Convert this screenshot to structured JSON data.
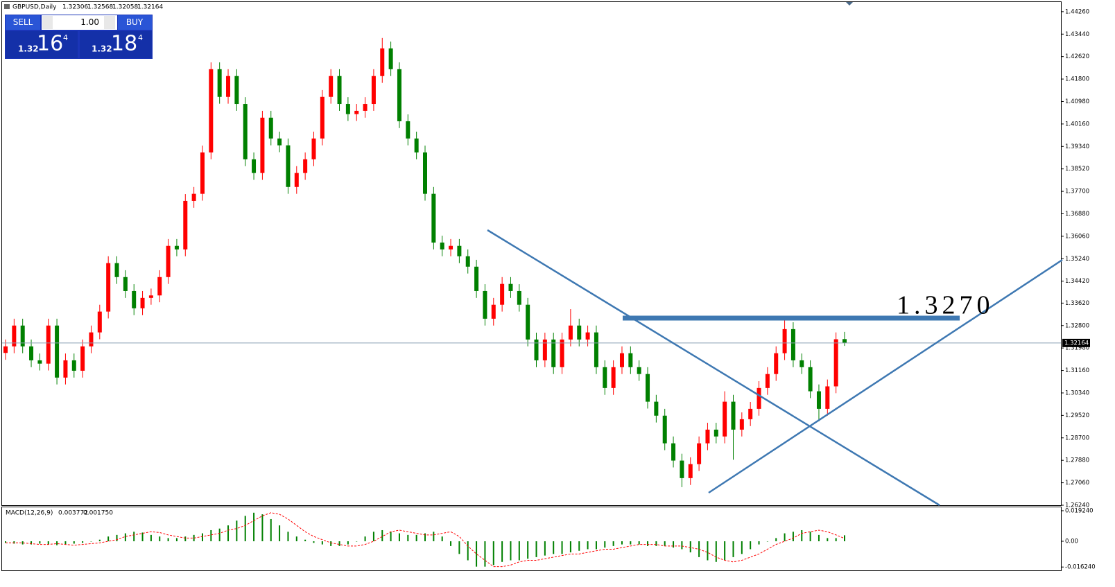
{
  "trade_panel": {
    "sell": "SELL",
    "buy": "BUY",
    "lots": "1.00",
    "sell_price": {
      "big": "1.32",
      "main": "16",
      "pip": "4"
    },
    "buy_price": {
      "big": "1.32",
      "main": "18",
      "pip": "4"
    }
  },
  "chart_data": {
    "type": "candlestick",
    "title": "GBPUSD,Daily",
    "up_color": "#ff0000",
    "down_color": "#008000",
    "annotation": "1.3270",
    "ylim": [
      1.2624,
      1.4456
    ],
    "yticks": [
      {
        "value": 1.4426,
        "label": "1.44260"
      },
      {
        "value": 1.4344,
        "label": "1.43440"
      },
      {
        "value": 1.4262,
        "label": "1.42620"
      },
      {
        "value": 1.418,
        "label": "1.41800"
      },
      {
        "value": 1.4098,
        "label": "1.40980"
      },
      {
        "value": 1.4016,
        "label": "1.40160"
      },
      {
        "value": 1.3934,
        "label": "1.39340"
      },
      {
        "value": 1.3852,
        "label": "1.38520"
      },
      {
        "value": 1.377,
        "label": "1.37700"
      },
      {
        "value": 1.3688,
        "label": "1.36880"
      },
      {
        "value": 1.3606,
        "label": "1.36060"
      },
      {
        "value": 1.3524,
        "label": "1.35240"
      },
      {
        "value": 1.3442,
        "label": "1.34420"
      },
      {
        "value": 1.3362,
        "label": "1.33620"
      },
      {
        "value": 1.328,
        "label": "1.32800"
      },
      {
        "value": 1.3198,
        "label": "1.31980"
      },
      {
        "value": 1.3116,
        "label": "1.31160"
      },
      {
        "value": 1.3034,
        "label": "1.30340"
      },
      {
        "value": 1.2952,
        "label": "1.29520"
      },
      {
        "value": 1.287,
        "label": "1.28700"
      },
      {
        "value": 1.2788,
        "label": "1.27880"
      },
      {
        "value": 1.2706,
        "label": "1.27060"
      },
      {
        "value": 1.2624,
        "label": "1.26240"
      }
    ],
    "candles": [
      [
        1.318,
        1.3229,
        1.3155,
        1.3204
      ],
      [
        1.3204,
        1.3305,
        1.3179,
        1.328
      ],
      [
        1.328,
        1.3305,
        1.3179,
        1.3204
      ],
      [
        1.3204,
        1.3229,
        1.3128,
        1.3153
      ],
      [
        1.3153,
        1.3178,
        1.3116,
        1.3141
      ],
      [
        1.3141,
        1.3305,
        1.3116,
        1.328
      ],
      [
        1.328,
        1.3305,
        1.3065,
        1.309
      ],
      [
        1.309,
        1.3178,
        1.3065,
        1.3153
      ],
      [
        1.3153,
        1.3178,
        1.309,
        1.3115
      ],
      [
        1.3115,
        1.3229,
        1.309,
        1.3204
      ],
      [
        1.3204,
        1.328,
        1.3179,
        1.3255
      ],
      [
        1.3255,
        1.3356,
        1.323,
        1.3331
      ],
      [
        1.3331,
        1.3533,
        1.3306,
        1.3508
      ],
      [
        1.3508,
        1.3533,
        1.3432,
        1.3457
      ],
      [
        1.3457,
        1.3482,
        1.3381,
        1.3406
      ],
      [
        1.3406,
        1.3431,
        1.3318,
        1.3343
      ],
      [
        1.3343,
        1.3406,
        1.3318,
        1.3381
      ],
      [
        1.3381,
        1.3415,
        1.3356,
        1.339
      ],
      [
        1.339,
        1.3482,
        1.3365,
        1.3457
      ],
      [
        1.3457,
        1.3596,
        1.3432,
        1.3571
      ],
      [
        1.3571,
        1.3596,
        1.3533,
        1.3558
      ],
      [
        1.3558,
        1.376,
        1.3533,
        1.3735
      ],
      [
        1.3735,
        1.3786,
        1.371,
        1.3761
      ],
      [
        1.3761,
        1.3937,
        1.3736,
        1.3912
      ],
      [
        1.3912,
        1.4241,
        1.3887,
        1.4216
      ],
      [
        1.4216,
        1.4241,
        1.409,
        1.4115
      ],
      [
        1.4115,
        1.4216,
        1.409,
        1.4191
      ],
      [
        1.4191,
        1.4216,
        1.4064,
        1.4089
      ],
      [
        1.4089,
        1.4114,
        1.3862,
        1.3887
      ],
      [
        1.3887,
        1.3912,
        1.3812,
        1.3837
      ],
      [
        1.3837,
        1.4064,
        1.3812,
        1.4039
      ],
      [
        1.4039,
        1.4064,
        1.3938,
        1.3963
      ],
      [
        1.3963,
        1.3988,
        1.3913,
        1.3938
      ],
      [
        1.3938,
        1.3963,
        1.3761,
        1.3786
      ],
      [
        1.3786,
        1.3862,
        1.3761,
        1.3837
      ],
      [
        1.3837,
        1.3912,
        1.3812,
        1.3887
      ],
      [
        1.3887,
        1.3988,
        1.3862,
        1.3963
      ],
      [
        1.3963,
        1.414,
        1.3938,
        1.4115
      ],
      [
        1.4115,
        1.4216,
        1.409,
        1.4191
      ],
      [
        1.4191,
        1.4216,
        1.4064,
        1.4089
      ],
      [
        1.4089,
        1.4114,
        1.4027,
        1.4052
      ],
      [
        1.4052,
        1.4089,
        1.4027,
        1.4064
      ],
      [
        1.4064,
        1.4114,
        1.4039,
        1.4089
      ],
      [
        1.4089,
        1.4216,
        1.4064,
        1.4191
      ],
      [
        1.4191,
        1.433,
        1.4166,
        1.4292
      ],
      [
        1.4292,
        1.4317,
        1.4191,
        1.4216
      ],
      [
        1.4216,
        1.4241,
        1.4001,
        1.4026
      ],
      [
        1.4026,
        1.4051,
        1.3938,
        1.3963
      ],
      [
        1.3963,
        1.3988,
        1.3887,
        1.3912
      ],
      [
        1.3912,
        1.3937,
        1.3736,
        1.3761
      ],
      [
        1.3761,
        1.3786,
        1.3558,
        1.3583
      ],
      [
        1.3583,
        1.3608,
        1.3533,
        1.3558
      ],
      [
        1.3558,
        1.3596,
        1.3533,
        1.3571
      ],
      [
        1.3571,
        1.3596,
        1.3508,
        1.3533
      ],
      [
        1.3533,
        1.3558,
        1.347,
        1.3495
      ],
      [
        1.3495,
        1.352,
        1.3381,
        1.3406
      ],
      [
        1.3406,
        1.3431,
        1.328,
        1.3305
      ],
      [
        1.3305,
        1.3381,
        1.328,
        1.3356
      ],
      [
        1.3356,
        1.3457,
        1.3331,
        1.3432
      ],
      [
        1.3432,
        1.3457,
        1.3381,
        1.3406
      ],
      [
        1.3406,
        1.3431,
        1.3331,
        1.3356
      ],
      [
        1.3356,
        1.3381,
        1.3204,
        1.3229
      ],
      [
        1.3229,
        1.3254,
        1.3128,
        1.3153
      ],
      [
        1.3153,
        1.3254,
        1.3128,
        1.3229
      ],
      [
        1.3229,
        1.3254,
        1.3103,
        1.3128
      ],
      [
        1.3128,
        1.3254,
        1.3103,
        1.3229
      ],
      [
        1.3229,
        1.334,
        1.3204,
        1.328
      ],
      [
        1.328,
        1.3305,
        1.3204,
        1.3229
      ],
      [
        1.3229,
        1.328,
        1.3204,
        1.3255
      ],
      [
        1.3255,
        1.328,
        1.3103,
        1.3128
      ],
      [
        1.3128,
        1.3153,
        1.3027,
        1.3052
      ],
      [
        1.3052,
        1.3153,
        1.3027,
        1.3128
      ],
      [
        1.3128,
        1.3204,
        1.3103,
        1.3179
      ],
      [
        1.3179,
        1.3204,
        1.3103,
        1.3128
      ],
      [
        1.3128,
        1.3153,
        1.3078,
        1.3103
      ],
      [
        1.3103,
        1.3128,
        1.2977,
        1.3002
      ],
      [
        1.3002,
        1.3027,
        1.2926,
        1.2951
      ],
      [
        1.2951,
        1.2976,
        1.2825,
        1.285
      ],
      [
        1.285,
        1.2875,
        1.2762,
        1.2787
      ],
      [
        1.2787,
        1.2812,
        1.269,
        1.2723
      ],
      [
        1.2723,
        1.2799,
        1.2698,
        1.2774
      ],
      [
        1.2774,
        1.2875,
        1.2749,
        1.285
      ],
      [
        1.285,
        1.2925,
        1.2825,
        1.29
      ],
      [
        1.29,
        1.2925,
        1.285,
        1.2875
      ],
      [
        1.2875,
        1.304,
        1.285,
        1.3002
      ],
      [
        1.3002,
        1.3027,
        1.279,
        1.29
      ],
      [
        1.29,
        1.2963,
        1.2875,
        1.2938
      ],
      [
        1.2938,
        1.3001,
        1.2913,
        1.2976
      ],
      [
        1.2976,
        1.3077,
        1.2951,
        1.3052
      ],
      [
        1.3052,
        1.3128,
        1.3027,
        1.3103
      ],
      [
        1.3103,
        1.3204,
        1.3078,
        1.3179
      ],
      [
        1.3179,
        1.33,
        1.3154,
        1.3267
      ],
      [
        1.3267,
        1.3292,
        1.3128,
        1.3153
      ],
      [
        1.3153,
        1.3178,
        1.3103,
        1.3128
      ],
      [
        1.3128,
        1.3153,
        1.3015,
        1.304
      ],
      [
        1.304,
        1.3065,
        1.293,
        1.2976
      ],
      [
        1.2976,
        1.3083,
        1.2951,
        1.3058
      ],
      [
        1.3058,
        1.3255,
        1.3033,
        1.323
      ],
      [
        1.32306,
        1.32568,
        1.32058,
        1.32164
      ]
    ],
    "macd": {
      "name": "MACD(12,26,9)",
      "color": "#008000",
      "signal_color": "#ff0000",
      "ylim": [
        -0.0179,
        0.0214
      ],
      "yticks": [
        {
          "value": 0.01924,
          "label": "0.019240"
        },
        {
          "value": 0,
          "label": "0.00"
        },
        {
          "value": -0.01624,
          "label": "-0.016240"
        }
      ],
      "values": [
        -0.001,
        -0.0015,
        -0.002,
        -0.002,
        -0.0015,
        -0.002,
        -0.0025,
        -0.002,
        -0.0015,
        -0.001,
        0.0,
        0.001,
        0.003,
        0.004,
        0.005,
        0.006,
        0.0055,
        0.004,
        0.003,
        0.002,
        0.002,
        0.003,
        0.004,
        0.005,
        0.007,
        0.008,
        0.01,
        0.013,
        0.016,
        0.018,
        0.017,
        0.014,
        0.01,
        0.006,
        0.003,
        0.001,
        -0.001,
        -0.002,
        -0.003,
        -0.003,
        -0.002,
        0.0,
        0.003,
        0.006,
        0.007,
        0.006,
        0.005,
        0.004,
        0.004,
        0.005,
        0.006,
        0.003,
        -0.003,
        -0.008,
        -0.012,
        -0.016,
        -0.016,
        -0.015,
        -0.013,
        -0.012,
        -0.012,
        -0.011,
        -0.01,
        -0.009,
        -0.008,
        -0.008,
        -0.007,
        -0.006,
        -0.005,
        -0.005,
        -0.004,
        -0.003,
        -0.002,
        -0.002,
        -0.002,
        -0.003,
        -0.003,
        -0.003,
        -0.004,
        -0.005,
        -0.007,
        -0.01,
        -0.012,
        -0.013,
        -0.012,
        -0.01,
        -0.008,
        -0.005,
        -0.002,
        0.0,
        0.002,
        0.005,
        0.006,
        0.007,
        0.006,
        0.004,
        0.002,
        0.002,
        0.003772
      ],
      "signal": {
        "values": [
          -0.001,
          -0.001,
          -0.001,
          -0.0015,
          -0.002,
          -0.002,
          -0.0015,
          -0.002,
          -0.0025,
          -0.002,
          -0.0015,
          -0.001,
          0.0,
          0.001,
          0.003,
          0.004,
          0.005,
          0.006,
          0.0055,
          0.004,
          0.003,
          0.002,
          0.002,
          0.003,
          0.004,
          0.005,
          0.007,
          0.008,
          0.01,
          0.013,
          0.016,
          0.018,
          0.017,
          0.014,
          0.01,
          0.006,
          0.003,
          0.001,
          -0.001,
          -0.002,
          -0.003,
          -0.003,
          -0.002,
          0.0,
          0.003,
          0.006,
          0.007,
          0.006,
          0.005,
          0.004,
          0.004,
          0.005,
          0.006,
          0.003,
          -0.003,
          -0.008,
          -0.012,
          -0.016,
          -0.016,
          -0.015,
          -0.013,
          -0.012,
          -0.012,
          -0.011,
          -0.01,
          -0.009,
          -0.008,
          -0.008,
          -0.007,
          -0.006,
          -0.005,
          -0.005,
          -0.004,
          -0.003,
          -0.002,
          -0.002,
          -0.002,
          -0.003,
          -0.003,
          -0.003,
          -0.004,
          -0.005,
          -0.007,
          -0.01,
          -0.012,
          -0.013,
          -0.012,
          -0.01,
          -0.008,
          -0.005,
          -0.002,
          0.0,
          0.002,
          0.005,
          0.006,
          0.007,
          0.006,
          0.004,
          0.00175
        ],
        "last_label": "0.001750"
      }
    }
  }
}
